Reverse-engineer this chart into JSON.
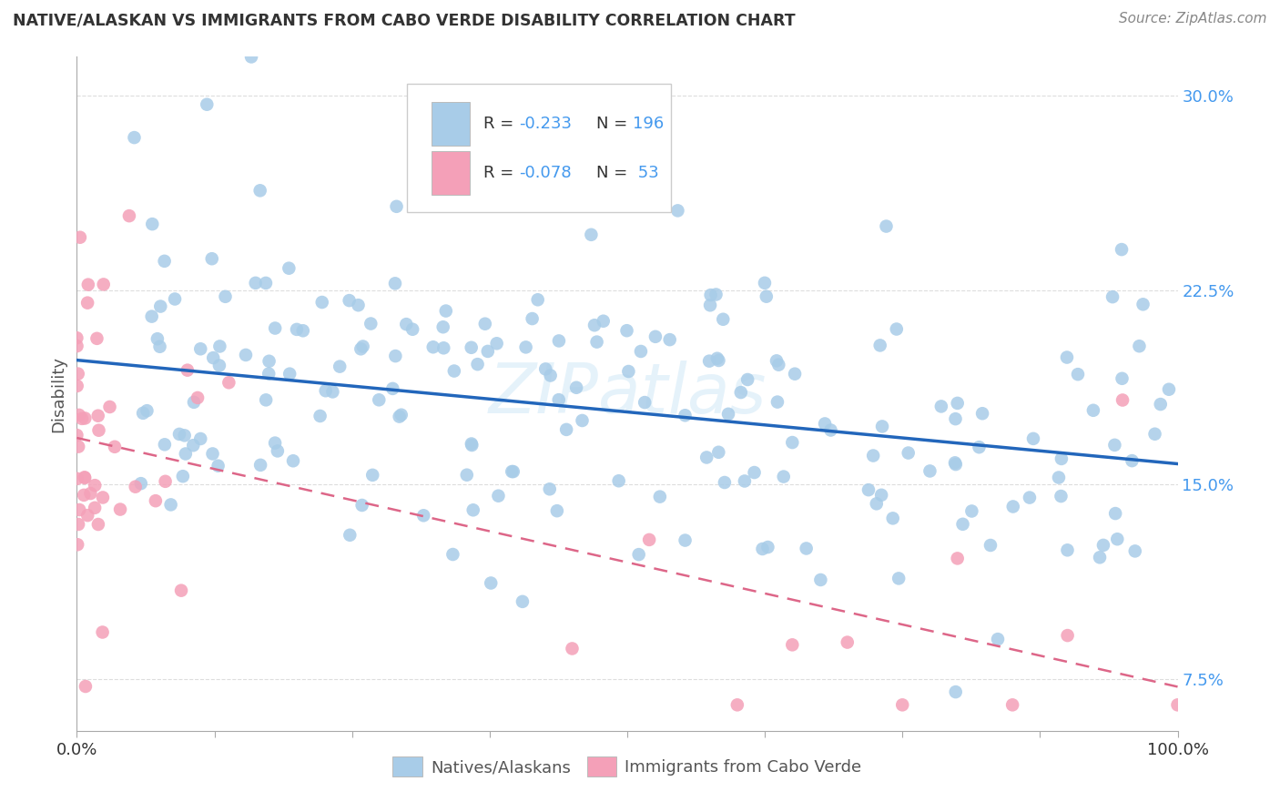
{
  "title": "NATIVE/ALASKAN VS IMMIGRANTS FROM CABO VERDE DISABILITY CORRELATION CHART",
  "source": "Source: ZipAtlas.com",
  "ylabel": "Disability",
  "xlim": [
    0.0,
    1.0
  ],
  "ylim": [
    0.055,
    0.315
  ],
  "yticks": [
    0.075,
    0.15,
    0.225,
    0.3
  ],
  "ytick_labels": [
    "7.5%",
    "15.0%",
    "22.5%",
    "30.0%"
  ],
  "watermark": "ZIPatlas",
  "color_native": "#a8cce8",
  "color_cabo": "#f4a0b8",
  "trendline_native_color": "#2266bb",
  "trendline_cabo_color": "#dd6688",
  "background_color": "#ffffff",
  "grid_color": "#dddddd",
  "trendline_native_x0": 0.0,
  "trendline_native_x1": 1.0,
  "trendline_native_y0": 0.198,
  "trendline_native_y1": 0.158,
  "trendline_cabo_x0": 0.0,
  "trendline_cabo_x1": 1.0,
  "trendline_cabo_y0": 0.168,
  "trendline_cabo_y1": 0.072
}
